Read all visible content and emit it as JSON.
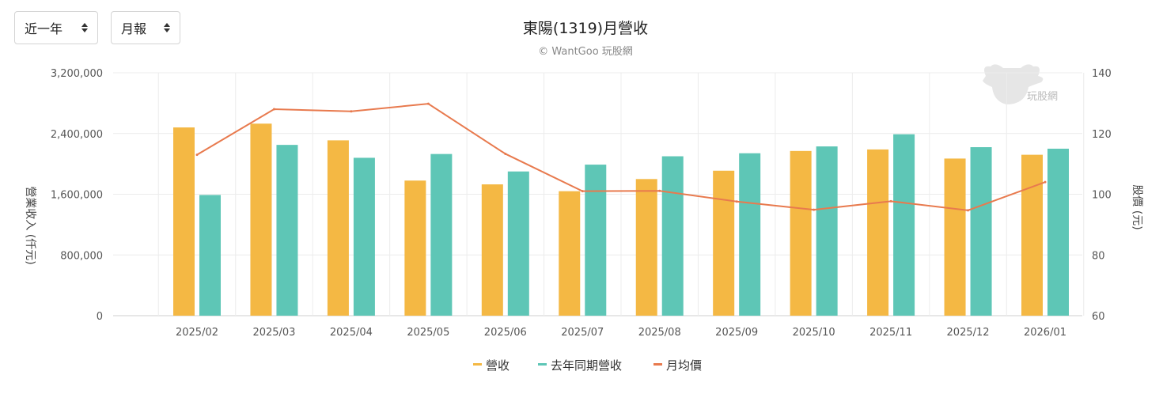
{
  "controls": {
    "range_label": "近一年",
    "frequency_label": "月報"
  },
  "colors": {
    "revenue": "#F4B844",
    "revenue_prev_year": "#5EC6B6",
    "avg_price": "#E87A4E",
    "grid": "#ececec",
    "axis_text": "#555555"
  },
  "watermark": {
    "text": "玩股網",
    "icon": "cow-logo-icon"
  },
  "chart_data": {
    "type": "bar",
    "title": "東陽(1319)月營收",
    "subtitle": "© WantGoo 玩股網",
    "categories": [
      "2025/02",
      "2025/03",
      "2025/04",
      "2025/05",
      "2025/06",
      "2025/07",
      "2025/08",
      "2025/09",
      "2025/10",
      "2025/11",
      "2025/12",
      "2026/01"
    ],
    "series": [
      {
        "name": "營收",
        "kind": "bar",
        "axis": "left",
        "values": [
          2480000,
          2530000,
          2310000,
          1780000,
          1730000,
          1640000,
          1800000,
          1910000,
          2170000,
          2190000,
          2070000,
          2120000
        ]
      },
      {
        "name": "去年同期營收",
        "kind": "bar",
        "axis": "left",
        "values": [
          1590000,
          2250000,
          2080000,
          2130000,
          1900000,
          1990000,
          2100000,
          2140000,
          2230000,
          2390000,
          2220000,
          2200000
        ]
      },
      {
        "name": "月均價",
        "kind": "line",
        "axis": "right",
        "values": [
          113.0,
          128.0,
          127.3,
          129.8,
          113.3,
          101.0,
          101.1,
          97.6,
          94.9,
          97.7,
          94.7,
          104.0
        ]
      }
    ],
    "ylabel": "營業收入 (仟元)",
    "ylim": [
      0,
      3200000
    ],
    "yticks": [
      "0",
      "800,000",
      "1,600,000",
      "2,400,000",
      "3,200,000"
    ],
    "ytick_values": [
      0,
      800000,
      1600000,
      2400000,
      3200000
    ],
    "y2label": "股價 (元)",
    "y2lim": [
      60,
      140
    ],
    "y2ticks": [
      "60",
      "80",
      "100",
      "120",
      "140"
    ],
    "y2tick_values": [
      60,
      80,
      100,
      120,
      140
    ],
    "legend": "bottom-center",
    "grid": true
  }
}
